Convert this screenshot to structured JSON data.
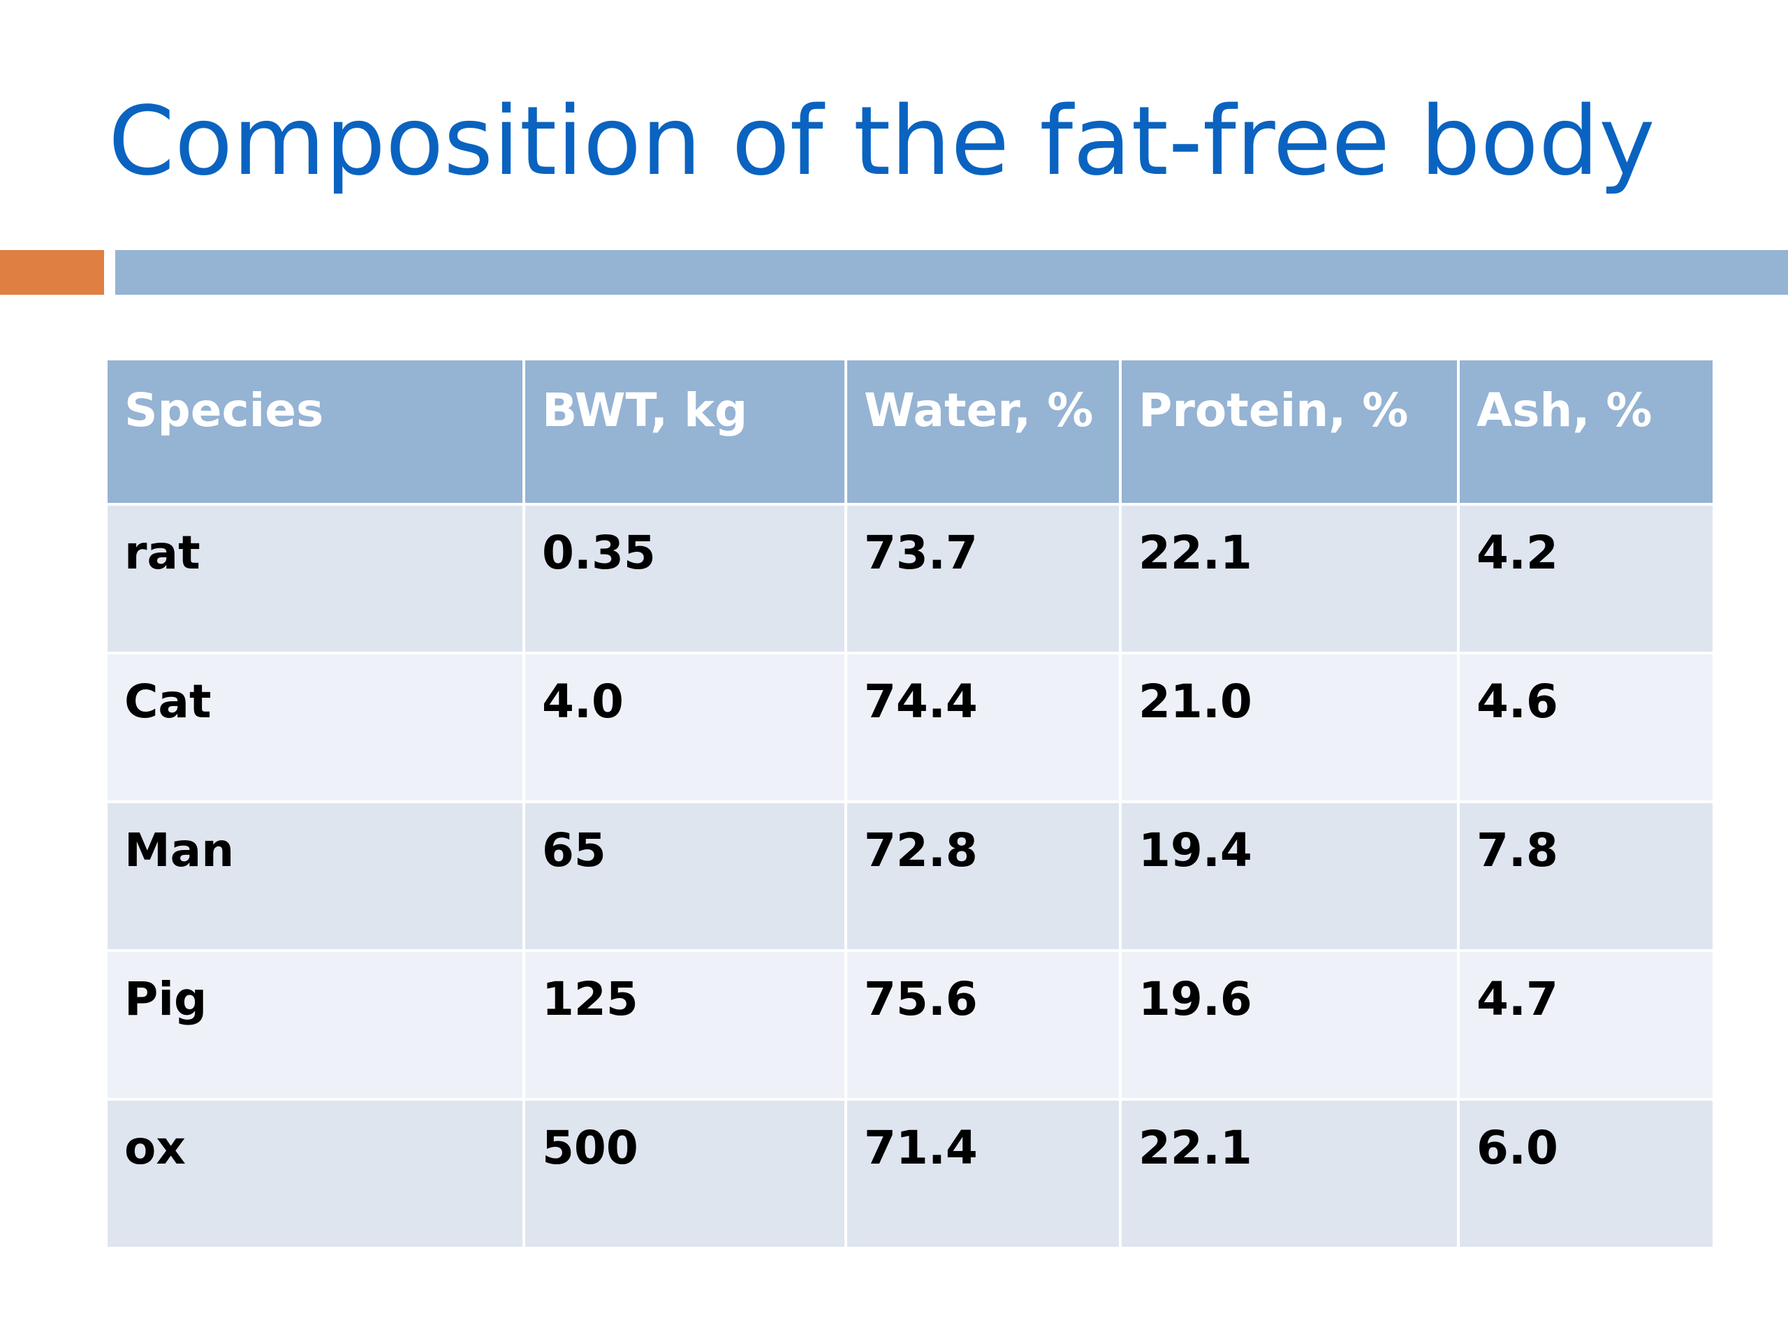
{
  "slide": {
    "title": "Composition of the fat-free body"
  },
  "colors": {
    "title": "#0a63c0",
    "accent_orange": "#df7f42",
    "accent_blue": "#95b3d3",
    "header_bg": "#95b3d3",
    "row_odd_bg": "#dee5ef",
    "row_even_bg": "#eef2f8"
  },
  "table": {
    "headers": [
      "Species",
      "BWT, kg",
      "Water, %",
      "Protein, %",
      "Ash, %"
    ],
    "rows": [
      [
        "rat",
        "0.35",
        "73.7",
        "22.1",
        "4.2"
      ],
      [
        "Cat",
        "4.0",
        "74.4",
        "21.0",
        "4.6"
      ],
      [
        "Man",
        "65",
        "72.8",
        "19.4",
        "7.8"
      ],
      [
        "Pig",
        "125",
        "75.6",
        "19.6",
        "4.7"
      ],
      [
        "ox",
        "500",
        "71.4",
        "22.1",
        "6.0"
      ]
    ]
  }
}
